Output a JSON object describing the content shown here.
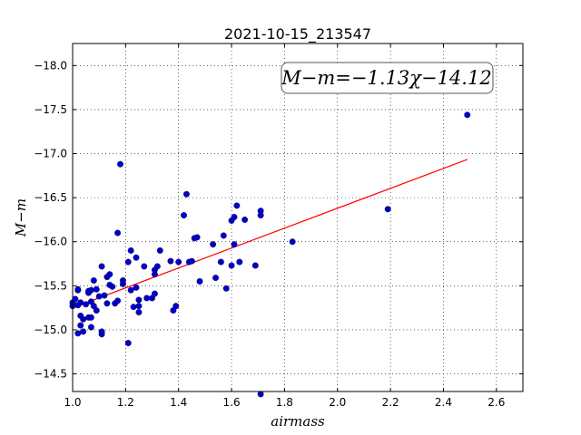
{
  "chart_data": {
    "type": "scatter",
    "title": "2021-10-15_213547",
    "xlabel": "airmass",
    "ylabel": "M−m",
    "xlim": [
      1.0,
      2.7
    ],
    "ylim": [
      -18.25,
      -14.3
    ],
    "y_inverted": true,
    "x_ticks": [
      1.0,
      1.2,
      1.4,
      1.6,
      1.8,
      2.0,
      2.2,
      2.4,
      2.6
    ],
    "x_tick_labels": [
      "1.0",
      "1.2",
      "1.4",
      "1.6",
      "1.8",
      "2.0",
      "2.2",
      "2.4",
      "2.6"
    ],
    "y_ticks": [
      -14.5,
      -15.0,
      -15.5,
      -16.0,
      -16.5,
      -17.0,
      -17.5,
      -18.0
    ],
    "y_tick_labels": [
      "−14.5",
      "−15.0",
      "−15.5",
      "−16.0",
      "−16.5",
      "−17.0",
      "−17.5",
      "−18.0"
    ],
    "grid": true,
    "annotation": "M−m=−1.13χ−14.12",
    "annotation_position": "top-right",
    "fit": {
      "slope": -1.13,
      "intercept": -14.12,
      "x_range": [
        1.0,
        2.49
      ],
      "color": "#ff0000"
    },
    "marker_color": "#0000cc",
    "points": [
      [
        1.0,
        -15.27
      ],
      [
        1.0,
        -15.31
      ],
      [
        1.01,
        -15.35
      ],
      [
        1.02,
        -14.96
      ],
      [
        1.02,
        -15.28
      ],
      [
        1.02,
        -15.45
      ],
      [
        1.02,
        -15.46
      ],
      [
        1.03,
        -15.05
      ],
      [
        1.03,
        -15.16
      ],
      [
        1.03,
        -15.31
      ],
      [
        1.04,
        -14.98
      ],
      [
        1.04,
        -15.12
      ],
      [
        1.05,
        -15.29
      ],
      [
        1.06,
        -15.14
      ],
      [
        1.06,
        -15.42
      ],
      [
        1.06,
        -15.44
      ],
      [
        1.07,
        -15.03
      ],
      [
        1.07,
        -15.14
      ],
      [
        1.07,
        -15.32
      ],
      [
        1.07,
        -15.45
      ],
      [
        1.08,
        -15.27
      ],
      [
        1.08,
        -15.56
      ],
      [
        1.09,
        -15.22
      ],
      [
        1.09,
        -15.46
      ],
      [
        1.1,
        -15.38
      ],
      [
        1.11,
        -14.95
      ],
      [
        1.11,
        -14.98
      ],
      [
        1.11,
        -15.72
      ],
      [
        1.12,
        -15.39
      ],
      [
        1.13,
        -15.3
      ],
      [
        1.13,
        -15.6
      ],
      [
        1.14,
        -15.51
      ],
      [
        1.14,
        -15.63
      ],
      [
        1.15,
        -15.49
      ],
      [
        1.16,
        -15.3
      ],
      [
        1.17,
        -15.33
      ],
      [
        1.17,
        -16.1
      ],
      [
        1.18,
        -16.88
      ],
      [
        1.19,
        -15.52
      ],
      [
        1.19,
        -15.56
      ],
      [
        1.21,
        -14.85
      ],
      [
        1.21,
        -15.77
      ],
      [
        1.22,
        -15.45
      ],
      [
        1.22,
        -15.9
      ],
      [
        1.23,
        -15.26
      ],
      [
        1.24,
        -15.48
      ],
      [
        1.24,
        -15.82
      ],
      [
        1.25,
        -15.2
      ],
      [
        1.25,
        -15.27
      ],
      [
        1.25,
        -15.34
      ],
      [
        1.27,
        -15.72
      ],
      [
        1.28,
        -15.36
      ],
      [
        1.3,
        -15.36
      ],
      [
        1.31,
        -15.41
      ],
      [
        1.31,
        -15.63
      ],
      [
        1.31,
        -15.68
      ],
      [
        1.32,
        -15.72
      ],
      [
        1.33,
        -15.9
      ],
      [
        1.37,
        -15.78
      ],
      [
        1.38,
        -15.22
      ],
      [
        1.39,
        -15.27
      ],
      [
        1.4,
        -15.77
      ],
      [
        1.42,
        -16.3
      ],
      [
        1.43,
        -16.54
      ],
      [
        1.44,
        -15.77
      ],
      [
        1.45,
        -15.78
      ],
      [
        1.46,
        -16.04
      ],
      [
        1.47,
        -16.05
      ],
      [
        1.48,
        -15.55
      ],
      [
        1.53,
        -15.97
      ],
      [
        1.54,
        -15.59
      ],
      [
        1.56,
        -15.77
      ],
      [
        1.57,
        -16.07
      ],
      [
        1.58,
        -15.47
      ],
      [
        1.6,
        -15.73
      ],
      [
        1.6,
        -16.24
      ],
      [
        1.61,
        -16.28
      ],
      [
        1.61,
        -15.97
      ],
      [
        1.62,
        -16.41
      ],
      [
        1.63,
        -15.77
      ],
      [
        1.65,
        -16.25
      ],
      [
        1.69,
        -15.73
      ],
      [
        1.71,
        -14.27
      ],
      [
        1.71,
        -16.3
      ],
      [
        1.71,
        -16.35
      ],
      [
        1.83,
        -16.0
      ],
      [
        2.19,
        -16.37
      ],
      [
        2.49,
        -17.44
      ]
    ]
  }
}
